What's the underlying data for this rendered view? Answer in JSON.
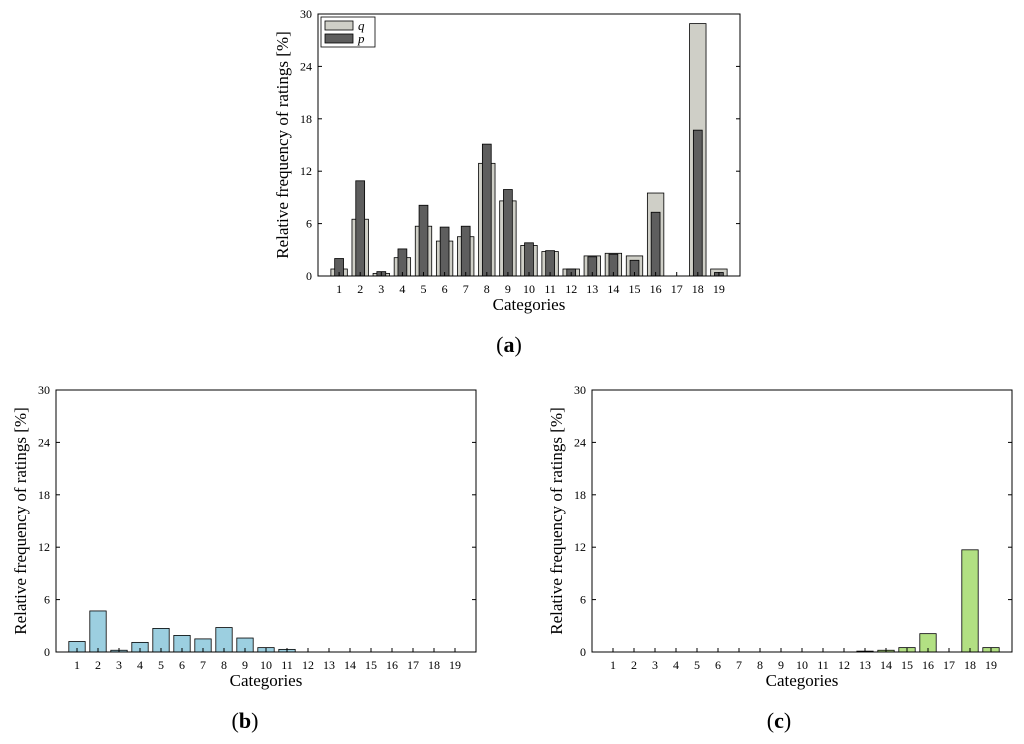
{
  "chart_data": [
    {
      "type": "bar",
      "panel_label": "a",
      "xlabel": "Categories",
      "ylabel": "Relative frequency of ratings [%]",
      "ylim": [
        0,
        30
      ],
      "yticks": [
        0,
        6,
        12,
        18,
        24,
        30
      ],
      "categories": [
        "1",
        "2",
        "3",
        "4",
        "5",
        "6",
        "7",
        "8",
        "9",
        "10",
        "11",
        "12",
        "13",
        "14",
        "15",
        "16",
        "17",
        "18",
        "19"
      ],
      "grid": false,
      "legend_position": "top-left",
      "series": [
        {
          "name": "q",
          "color": "#cfcfc7",
          "width": "wide",
          "values": [
            0.8,
            6.5,
            0.3,
            2.1,
            5.7,
            4.0,
            4.5,
            12.9,
            8.6,
            3.5,
            2.8,
            0.8,
            2.3,
            2.6,
            2.3,
            9.5,
            0,
            28.9,
            0.8
          ]
        },
        {
          "name": "p",
          "color": "#5e5e5e",
          "width": "narrow",
          "values": [
            2.0,
            10.9,
            0.5,
            3.1,
            8.1,
            5.6,
            5.7,
            15.1,
            9.9,
            3.8,
            2.9,
            0.8,
            2.2,
            2.5,
            1.8,
            7.3,
            0,
            16.7,
            0.4
          ]
        }
      ]
    },
    {
      "type": "bar",
      "panel_label": "b",
      "xlabel": "Categories",
      "ylabel": "Relative frequency of ratings [%]",
      "ylim": [
        0,
        30
      ],
      "yticks": [
        0,
        6,
        12,
        18,
        24,
        30
      ],
      "categories": [
        "1",
        "2",
        "3",
        "4",
        "5",
        "6",
        "7",
        "8",
        "9",
        "10",
        "11",
        "12",
        "13",
        "14",
        "15",
        "16",
        "17",
        "18",
        "19"
      ],
      "grid": false,
      "series": [
        {
          "color": "#9ccfe0",
          "values": [
            1.2,
            4.7,
            0.2,
            1.1,
            2.7,
            1.9,
            1.5,
            2.8,
            1.6,
            0.5,
            0.3,
            0,
            0,
            0,
            0,
            0,
            0,
            0,
            0
          ]
        }
      ]
    },
    {
      "type": "bar",
      "panel_label": "c",
      "xlabel": "Categories",
      "ylabel": "Relative frequency of ratings [%]",
      "ylim": [
        0,
        30
      ],
      "yticks": [
        0,
        6,
        12,
        18,
        24,
        30
      ],
      "categories": [
        "1",
        "2",
        "3",
        "4",
        "5",
        "6",
        "7",
        "8",
        "9",
        "10",
        "11",
        "12",
        "13",
        "14",
        "15",
        "16",
        "17",
        "18",
        "19"
      ],
      "grid": false,
      "series": [
        {
          "color": "#b2e083",
          "values": [
            0,
            0,
            0,
            0,
            0,
            0,
            0,
            0,
            0,
            0,
            0,
            0,
            0.1,
            0.2,
            0.5,
            2.1,
            0,
            11.7,
            0.5
          ]
        }
      ]
    }
  ]
}
